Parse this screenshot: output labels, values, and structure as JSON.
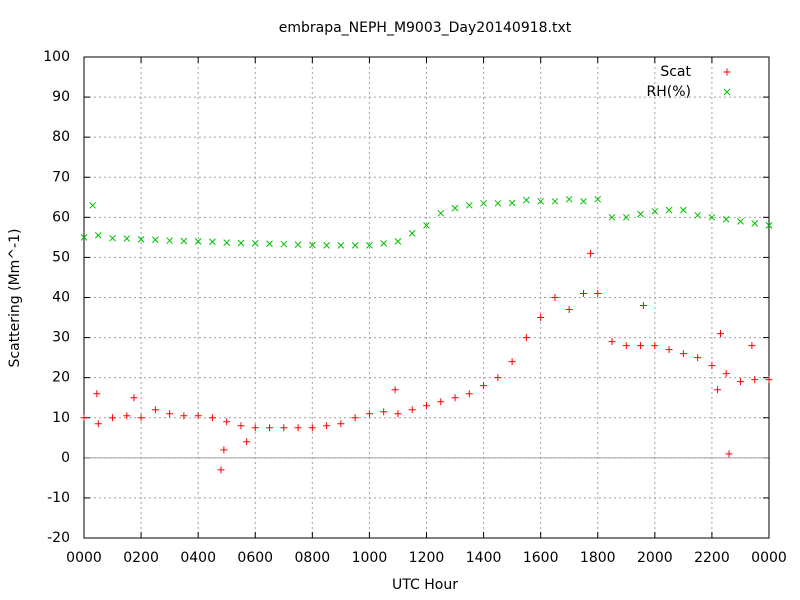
{
  "chart_data": {
    "type": "scatter",
    "title": "embrapa_NEPH_M9003_Day20140918.txt",
    "xlabel": "UTC Hour",
    "ylabel": "Scattering (Mm^-1)",
    "xlim": [
      0,
      24
    ],
    "ylim": [
      -20,
      100
    ],
    "xticks": [
      {
        "value": 0,
        "label": "0000"
      },
      {
        "value": 2,
        "label": "0200"
      },
      {
        "value": 4,
        "label": "0400"
      },
      {
        "value": 6,
        "label": "0600"
      },
      {
        "value": 8,
        "label": "0800"
      },
      {
        "value": 10,
        "label": "1000"
      },
      {
        "value": 12,
        "label": "1200"
      },
      {
        "value": 14,
        "label": "1400"
      },
      {
        "value": 16,
        "label": "1600"
      },
      {
        "value": 18,
        "label": "1800"
      },
      {
        "value": 20,
        "label": "2000"
      },
      {
        "value": 22,
        "label": "2200"
      },
      {
        "value": 24,
        "label": "0000"
      }
    ],
    "yticks": [
      -20,
      -10,
      0,
      10,
      20,
      30,
      40,
      50,
      60,
      70,
      80,
      90,
      100
    ],
    "grid": true,
    "zeroaxis": true,
    "legend": "top right",
    "series": [
      {
        "name": "Scat",
        "color": "#ff0000",
        "marker": "plus",
        "x": [
          0,
          0.5,
          1,
          1.5,
          2,
          2.5,
          3,
          3.5,
          4,
          4.5,
          5,
          5.5,
          6,
          6.5,
          7,
          7.5,
          8,
          8.5,
          9,
          9.5,
          10,
          10.5,
          11,
          11.5,
          12,
          12.5,
          13,
          13.5,
          14,
          14.5,
          15,
          15.5,
          16,
          16.5,
          17,
          17.5,
          18,
          18.5,
          19,
          19.5,
          20,
          20.5,
          21,
          21.5,
          22,
          22.5,
          23,
          23.5,
          24,
          0.45,
          1.75,
          4.8,
          4.9,
          5.7,
          17.75,
          10.9,
          19.6,
          22.2,
          22.3,
          22.6,
          23.4
        ],
        "values": [
          10,
          8.5,
          10,
          10.5,
          10,
          12,
          11,
          10.5,
          10.5,
          10,
          9,
          8,
          7.5,
          7.5,
          7.5,
          7.5,
          7.5,
          8,
          8.5,
          10,
          11,
          11.5,
          11,
          12,
          13,
          14,
          15,
          16,
          18,
          20,
          24,
          30,
          35,
          40,
          37,
          41,
          41,
          29,
          28,
          28,
          28,
          27,
          26,
          25,
          23,
          21,
          19,
          19.5,
          19.5,
          16,
          15,
          -3,
          2,
          4,
          51,
          17,
          38,
          17,
          31,
          1,
          28
        ]
      },
      {
        "name": "RH(%)",
        "color": "#00c000",
        "marker": "cross",
        "x": [
          0,
          0.5,
          1,
          1.5,
          2,
          2.5,
          3,
          3.5,
          4,
          4.5,
          5,
          5.5,
          6,
          6.5,
          7,
          7.5,
          8,
          8.5,
          9,
          9.5,
          10,
          10.5,
          11,
          11.5,
          12,
          12.5,
          13,
          13.5,
          14,
          14.5,
          15,
          15.5,
          16,
          16.5,
          17,
          17.5,
          18,
          18.5,
          19,
          19.5,
          20,
          20.5,
          21,
          21.5,
          22,
          22.5,
          23,
          23.5,
          24,
          0.3
        ],
        "values": [
          55,
          55.5,
          54.8,
          54.7,
          54.5,
          54.4,
          54.2,
          54.1,
          54,
          53.9,
          53.7,
          53.6,
          53.5,
          53.4,
          53.3,
          53.2,
          53.1,
          53,
          53,
          53,
          53,
          53.5,
          54,
          56,
          58,
          61,
          62.3,
          63,
          63.5,
          63.5,
          63.6,
          64.3,
          64,
          64,
          64.5,
          64,
          64.5,
          60,
          60,
          60.8,
          61.5,
          61.8,
          61.8,
          60.5,
          60,
          59.5,
          59,
          58.5,
          58,
          63
        ]
      }
    ]
  }
}
